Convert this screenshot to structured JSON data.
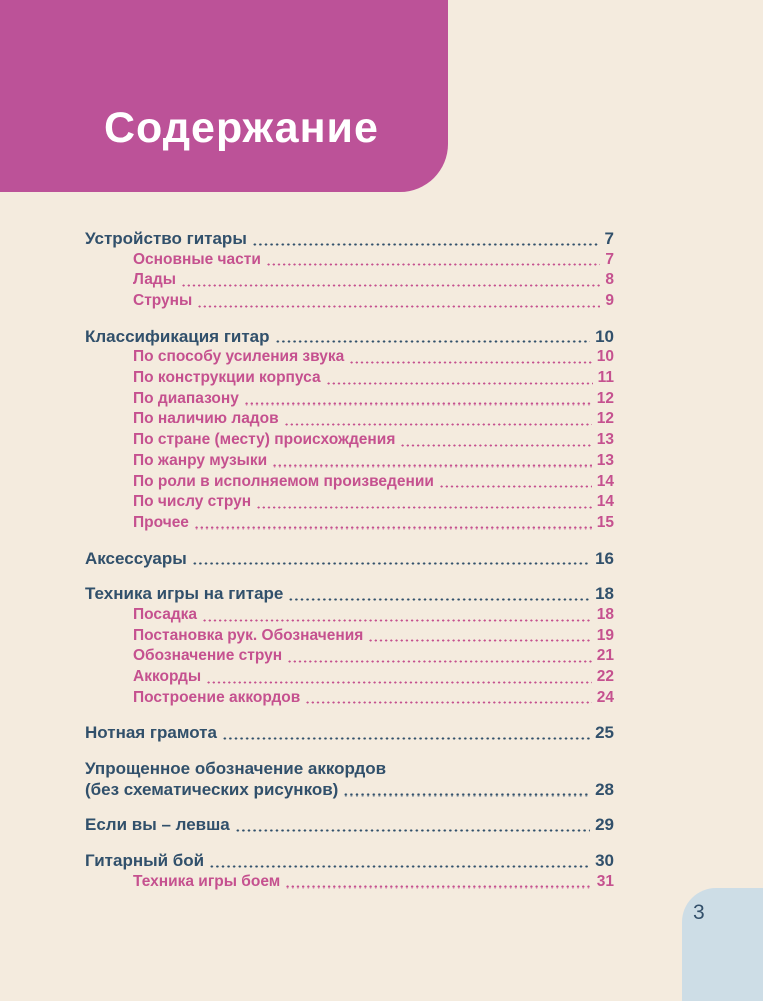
{
  "header": {
    "title": "Содержание",
    "background_color": "#bc5298",
    "text_color": "#ffffff"
  },
  "folio": {
    "page_number": "3",
    "background_color": "#cddde6",
    "text_color": "#33506b"
  },
  "colors": {
    "page_background": "#f4ebde",
    "section_text": "#31506b",
    "subsection_text": "#c5518f"
  },
  "toc": {
    "groups": [
      {
        "items": [
          {
            "label": "Устройство гитары",
            "page": "7",
            "level": 0
          },
          {
            "label": "Основные части",
            "page": "7",
            "level": 1
          },
          {
            "label": "Лады",
            "page": "8",
            "level": 1
          },
          {
            "label": "Струны",
            "page": "9",
            "level": 1
          }
        ]
      },
      {
        "items": [
          {
            "label": "Классификация гитар",
            "page": "10",
            "level": 0
          },
          {
            "label": "По способу усиления звука",
            "page": "10",
            "level": 1
          },
          {
            "label": "По конструкции корпуса",
            "page": "11",
            "level": 1
          },
          {
            "label": "По диапазону",
            "page": "12",
            "level": 1
          },
          {
            "label": "По наличию ладов",
            "page": "12",
            "level": 1
          },
          {
            "label": "По стране (месту) происхождения",
            "page": "13",
            "level": 1
          },
          {
            "label": "По жанру музыки",
            "page": "13",
            "level": 1
          },
          {
            "label": "По роли в исполняемом произведении",
            "page": "14",
            "level": 1
          },
          {
            "label": "По числу струн",
            "page": "14",
            "level": 1
          },
          {
            "label": "Прочее",
            "page": "15",
            "level": 1
          }
        ]
      },
      {
        "items": [
          {
            "label": "Аксессуары",
            "page": "16",
            "level": 0
          }
        ]
      },
      {
        "items": [
          {
            "label": "Техника игры на гитаре",
            "page": "18",
            "level": 0
          },
          {
            "label": "Посадка",
            "page": "18",
            "level": 1
          },
          {
            "label": "Постановка рук. Обозначения",
            "page": "19",
            "level": 1
          },
          {
            "label": "Обозначение струн",
            "page": "21",
            "level": 1
          },
          {
            "label": "Аккорды",
            "page": "22",
            "level": 1
          },
          {
            "label": "Построение аккордов",
            "page": "24",
            "level": 1
          }
        ]
      },
      {
        "items": [
          {
            "label": "Нотная грамота",
            "page": "25",
            "level": 0
          }
        ]
      },
      {
        "items": [
          {
            "label": "Упрощенное обозначение аккордов",
            "label_line2": "(без схематических рисунков)",
            "page": "28",
            "level": 0
          }
        ]
      },
      {
        "items": [
          {
            "label": "Если вы – левша",
            "page": "29",
            "level": 0
          }
        ]
      },
      {
        "items": [
          {
            "label": "Гитарный бой",
            "page": "30",
            "level": 0
          },
          {
            "label": "Техника игры боем",
            "page": "31",
            "level": 1
          }
        ]
      }
    ]
  }
}
